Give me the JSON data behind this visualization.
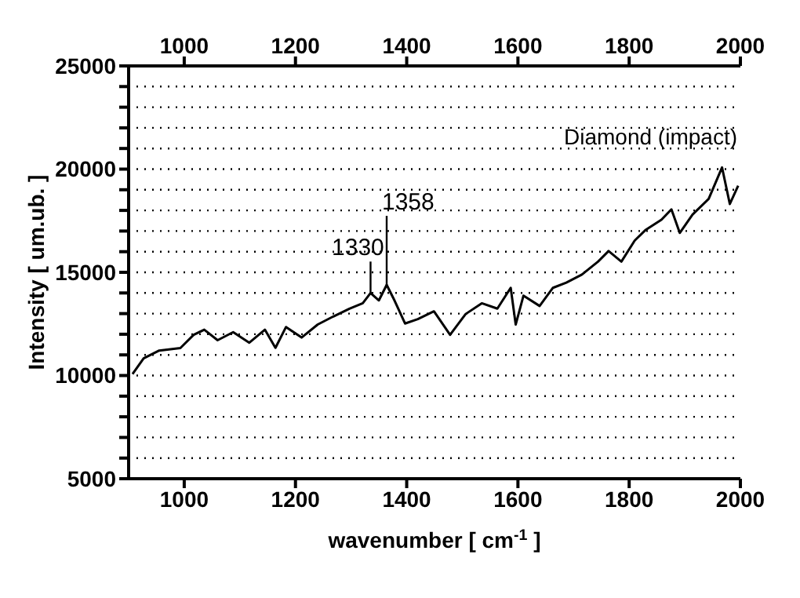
{
  "chart_data": {
    "type": "line",
    "xlabel": "wavenumber [ cm$^{-1}$ ]",
    "ylabel": "Intensity [ um.ub. ]",
    "annotations": [
      {
        "text": "1330",
        "x": 1335,
        "y": 14000
      },
      {
        "text": "1358",
        "x": 1364,
        "y": 14390
      },
      "Diamond (impact)"
    ],
    "series": [
      {
        "color": "#000000",
        "x": [
          907,
          927,
          955,
          993,
          1017,
          1036,
          1060,
          1088,
          1117,
          1145,
          1164,
          1183,
          1211,
          1240,
          1268,
          1297,
          1321,
          1335,
          1350,
          1364,
          1378,
          1397,
          1420,
          1449,
          1478,
          1506,
          1535,
          1563,
          1587,
          1596,
          1610,
          1639,
          1663,
          1687,
          1715,
          1744,
          1763,
          1786,
          1810,
          1829,
          1858,
          1876,
          1891,
          1914,
          1943,
          1967,
          1981,
          1996
        ],
        "values": [
          10070,
          10830,
          11210,
          11330,
          11970,
          12220,
          11710,
          12100,
          11590,
          12220,
          11340,
          12350,
          11840,
          12470,
          12860,
          13240,
          13500,
          14000,
          13640,
          14390,
          13640,
          12520,
          12730,
          13110,
          11970,
          12980,
          13500,
          13240,
          14250,
          12470,
          13870,
          13370,
          14250,
          14500,
          14890,
          15520,
          16030,
          15520,
          16540,
          17040,
          17550,
          18050,
          16910,
          17800,
          18560,
          20080,
          18310,
          19200
        ]
      }
    ],
    "xlim": [
      900,
      2000
    ],
    "xticks": [
      1000,
      1200,
      1400,
      1600,
      1800,
      2000
    ],
    "x2lim": [
      900,
      2000
    ],
    "x2ticks": [
      1000,
      1200,
      1400,
      1600,
      1800,
      2000
    ],
    "ylim": [
      5000,
      25000
    ],
    "yticks": [
      5000,
      {
        "value": 6000,
        "label": null
      },
      {
        "value": 7000,
        "label": null
      },
      {
        "value": 8000,
        "label": null
      },
      {
        "value": 9000,
        "label": null
      },
      10000,
      {
        "value": 11000,
        "label": null
      },
      {
        "value": 12000,
        "label": null
      },
      {
        "value": 13000,
        "label": null
      },
      {
        "value": 14000,
        "label": null
      },
      15000,
      {
        "value": 16000,
        "label": null
      },
      {
        "value": 17000,
        "label": null
      },
      {
        "value": 18000,
        "label": null
      },
      {
        "value": 19000,
        "label": null
      },
      20000,
      {
        "value": 21000,
        "label": null
      },
      {
        "value": 22000,
        "label": null
      },
      {
        "value": 23000,
        "label": null
      },
      {
        "value": 24000,
        "label": null
      },
      25000
    ],
    "grid": "y",
    "marker": "none",
    "line_style": "solid"
  }
}
